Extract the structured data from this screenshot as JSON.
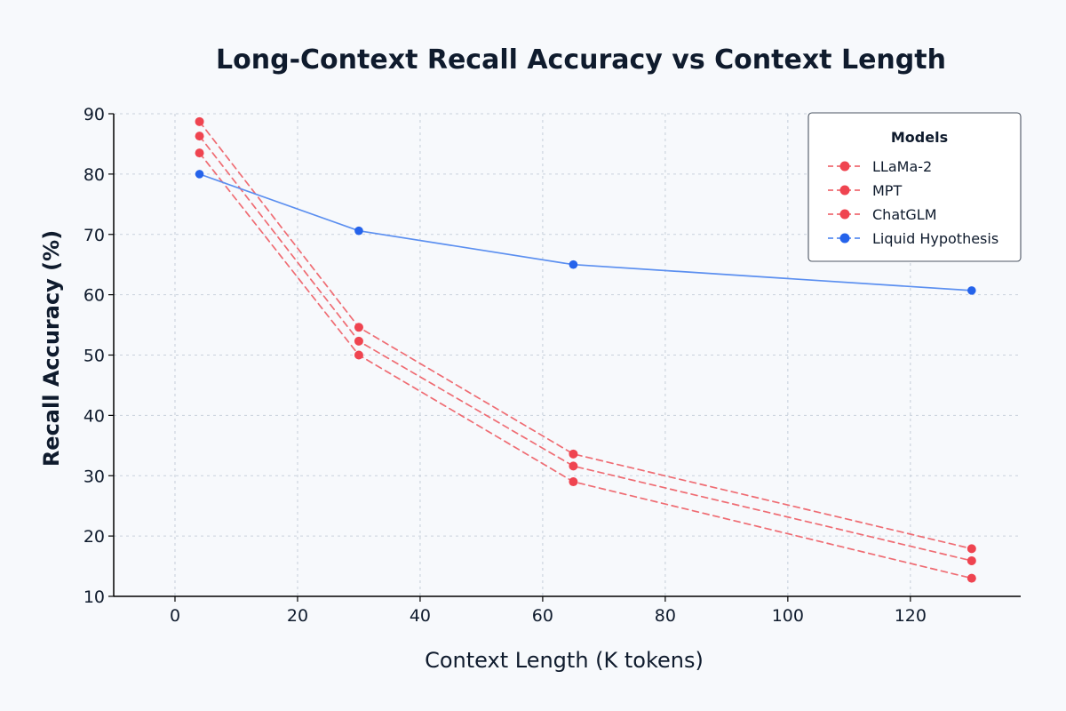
{
  "chart_data": {
    "type": "line",
    "title": "Long-Context Recall Accuracy vs Context Length",
    "xlabel": "Context Length (K tokens)",
    "ylabel": "Recall Accuracy (%)",
    "xlim": [
      -10,
      138
    ],
    "ylim": [
      10,
      90
    ],
    "xticks": [
      0,
      20,
      40,
      60,
      80,
      100,
      120
    ],
    "yticks": [
      10,
      20,
      30,
      40,
      50,
      60,
      70,
      80,
      90
    ],
    "grid": true,
    "legend": {
      "title": "Models",
      "placement": "top-right"
    },
    "x": [
      4,
      30,
      65,
      130
    ],
    "series": [
      {
        "name": "LLaMa-2",
        "values": [
          83.5,
          50,
          29,
          13
        ],
        "color": "#ef4450",
        "line_style": "dashed"
      },
      {
        "name": "MPT",
        "values": [
          86.3,
          52.3,
          31.6,
          15.9
        ],
        "color": "#ef4450",
        "line_style": "dashed"
      },
      {
        "name": "ChatGLM",
        "values": [
          88.7,
          54.6,
          33.6,
          17.9
        ],
        "color": "#ef4450",
        "line_style": "dashed"
      },
      {
        "name": "Liquid Hypothesis",
        "values": [
          80,
          70.6,
          65,
          60.7
        ],
        "color": "#2563eb",
        "line_style": "solid"
      }
    ]
  }
}
